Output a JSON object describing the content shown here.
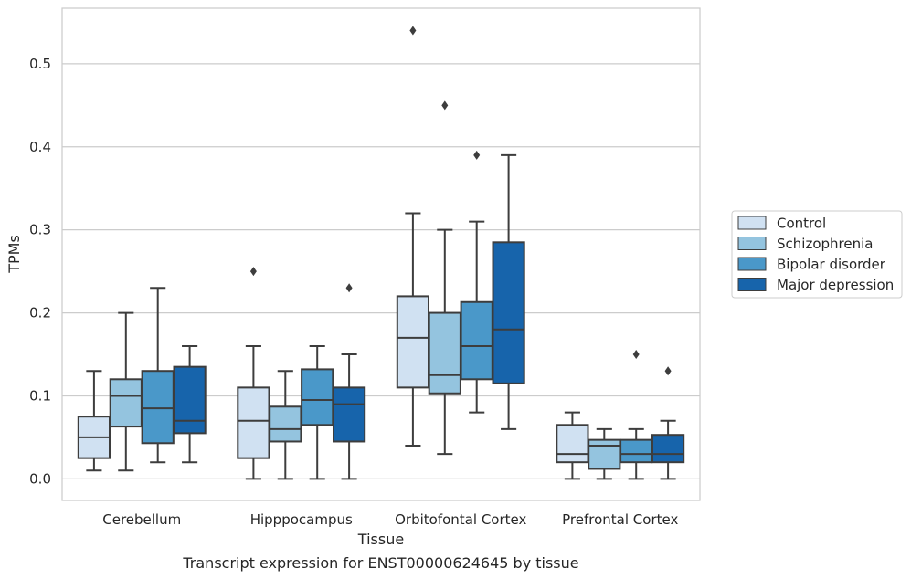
{
  "chart_data": {
    "type": "box",
    "xlabel": "Tissue",
    "ylabel": "TPMs",
    "caption": "Transcript expression for ENST00000624645 by tissue",
    "ylim": [
      -0.026,
      0.567
    ],
    "yticks": [
      0.0,
      0.1,
      0.2,
      0.3,
      0.4,
      0.5
    ],
    "ytick_labels": [
      "0.0",
      "0.1",
      "0.2",
      "0.3",
      "0.4",
      "0.5"
    ],
    "grid": "horizontal",
    "legend_position": "right",
    "categories": [
      "Cerebellum",
      "Hipppocampus",
      "Orbitofontal Cortex",
      "Prefrontal Cortex"
    ],
    "series": [
      {
        "name": "Control",
        "color": "#d0e1f2",
        "boxes": [
          {
            "whisker_low": 0.01,
            "q1": 0.025,
            "median": 0.05,
            "q3": 0.075,
            "whisker_high": 0.13,
            "outliers": []
          },
          {
            "whisker_low": 0.0,
            "q1": 0.025,
            "median": 0.07,
            "q3": 0.11,
            "whisker_high": 0.16,
            "outliers": [
              0.25
            ]
          },
          {
            "whisker_low": 0.04,
            "q1": 0.11,
            "median": 0.17,
            "q3": 0.22,
            "whisker_high": 0.32,
            "outliers": [
              0.54
            ]
          },
          {
            "whisker_low": 0.0,
            "q1": 0.02,
            "median": 0.03,
            "q3": 0.065,
            "whisker_high": 0.08,
            "outliers": []
          }
        ]
      },
      {
        "name": "Schizophrenia",
        "color": "#94c4df",
        "boxes": [
          {
            "whisker_low": 0.01,
            "q1": 0.063,
            "median": 0.1,
            "q3": 0.12,
            "whisker_high": 0.2,
            "outliers": []
          },
          {
            "whisker_low": 0.0,
            "q1": 0.045,
            "median": 0.06,
            "q3": 0.087,
            "whisker_high": 0.13,
            "outliers": []
          },
          {
            "whisker_low": 0.03,
            "q1": 0.103,
            "median": 0.125,
            "q3": 0.2,
            "whisker_high": 0.3,
            "outliers": [
              0.45
            ]
          },
          {
            "whisker_low": 0.0,
            "q1": 0.012,
            "median": 0.04,
            "q3": 0.047,
            "whisker_high": 0.06,
            "outliers": []
          }
        ]
      },
      {
        "name": "Bipolar disorder",
        "color": "#4a98c9",
        "boxes": [
          {
            "whisker_low": 0.02,
            "q1": 0.043,
            "median": 0.085,
            "q3": 0.13,
            "whisker_high": 0.23,
            "outliers": []
          },
          {
            "whisker_low": 0.0,
            "q1": 0.065,
            "median": 0.095,
            "q3": 0.132,
            "whisker_high": 0.16,
            "outliers": []
          },
          {
            "whisker_low": 0.08,
            "q1": 0.12,
            "median": 0.16,
            "q3": 0.213,
            "whisker_high": 0.31,
            "outliers": [
              0.39
            ]
          },
          {
            "whisker_low": 0.0,
            "q1": 0.02,
            "median": 0.03,
            "q3": 0.047,
            "whisker_high": 0.06,
            "outliers": [
              0.15
            ]
          }
        ]
      },
      {
        "name": "Major depression",
        "color": "#1764ab",
        "boxes": [
          {
            "whisker_low": 0.02,
            "q1": 0.055,
            "median": 0.07,
            "q3": 0.135,
            "whisker_high": 0.16,
            "outliers": []
          },
          {
            "whisker_low": 0.0,
            "q1": 0.045,
            "median": 0.09,
            "q3": 0.11,
            "whisker_high": 0.15,
            "outliers": [
              0.23
            ]
          },
          {
            "whisker_low": 0.06,
            "q1": 0.115,
            "median": 0.18,
            "q3": 0.285,
            "whisker_high": 0.39,
            "outliers": []
          },
          {
            "whisker_low": 0.0,
            "q1": 0.02,
            "median": 0.03,
            "q3": 0.053,
            "whisker_high": 0.07,
            "outliers": [
              0.13
            ]
          }
        ]
      }
    ]
  }
}
